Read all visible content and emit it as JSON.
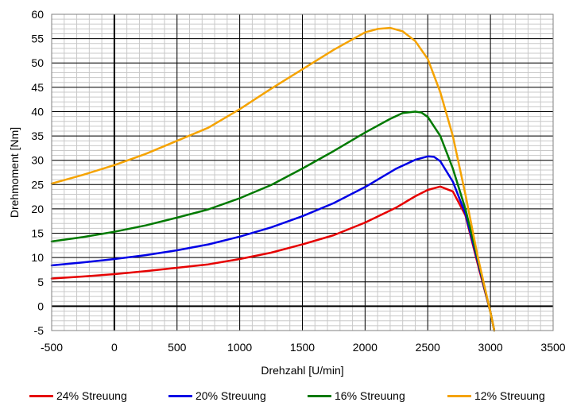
{
  "chart_data": {
    "type": "line",
    "title": "",
    "xlabel": "Drehzahl [U/min]",
    "ylabel": "Drehmoment [Nm]",
    "xlim": [
      -500,
      3500
    ],
    "ylim": [
      -5,
      60
    ],
    "x_major_step": 500,
    "y_major_step": 5,
    "x_minor_step": 100,
    "y_minor_step": 1,
    "x_ticks": [
      "-500",
      "0",
      "500",
      "1000",
      "1500",
      "2000",
      "2500",
      "3000",
      "3500"
    ],
    "y_ticks": [
      "-5",
      "0",
      "5",
      "10",
      "15",
      "20",
      "25",
      "30",
      "35",
      "40",
      "45",
      "50",
      "55",
      "60"
    ],
    "grid": true,
    "legend_position": "bottom",
    "series": [
      {
        "name": "24% Streuung",
        "color": "#e60000",
        "x": [
          -500,
          -250,
          0,
          250,
          500,
          750,
          1000,
          1250,
          1500,
          1750,
          2000,
          2250,
          2400,
          2500,
          2600,
          2700,
          2800,
          2900,
          3000,
          3030
        ],
        "y": [
          5.7,
          6.1,
          6.6,
          7.2,
          7.9,
          8.6,
          9.7,
          11.0,
          12.7,
          14.6,
          17.2,
          20.3,
          22.6,
          23.9,
          24.6,
          23.6,
          18.7,
          8.5,
          -1.2,
          -5.0
        ]
      },
      {
        "name": "20% Streuung",
        "color": "#0000e6",
        "x": [
          -500,
          -250,
          0,
          250,
          500,
          750,
          1000,
          1250,
          1500,
          1750,
          2000,
          2250,
          2400,
          2500,
          2550,
          2600,
          2700,
          2800,
          2900,
          3000,
          3030
        ],
        "y": [
          8.4,
          9.0,
          9.7,
          10.5,
          11.5,
          12.7,
          14.3,
          16.2,
          18.5,
          21.2,
          24.5,
          28.3,
          30.1,
          30.8,
          30.7,
          29.8,
          25.6,
          19.0,
          9.0,
          -1.2,
          -5.0
        ]
      },
      {
        "name": "16% Streuung",
        "color": "#007a00",
        "x": [
          -500,
          -250,
          0,
          250,
          500,
          750,
          1000,
          1250,
          1500,
          1750,
          2000,
          2200,
          2300,
          2400,
          2450,
          2500,
          2600,
          2700,
          2800,
          2900,
          3000,
          3030
        ],
        "y": [
          13.3,
          14.2,
          15.3,
          16.6,
          18.2,
          19.9,
          22.2,
          24.9,
          28.3,
          31.9,
          35.7,
          38.5,
          39.7,
          40.0,
          39.8,
          38.9,
          35.0,
          28.3,
          20.0,
          9.5,
          -1.2,
          -5.0
        ]
      },
      {
        "name": "12% Streuung",
        "color": "#f5a300",
        "x": [
          -500,
          -250,
          0,
          250,
          500,
          750,
          1000,
          1250,
          1500,
          1750,
          2000,
          2100,
          2200,
          2300,
          2400,
          2500,
          2600,
          2700,
          2800,
          2900,
          3000,
          3030
        ],
        "y": [
          25.2,
          27.0,
          29.0,
          31.3,
          34.0,
          36.7,
          40.5,
          44.7,
          48.7,
          52.7,
          56.3,
          57.0,
          57.2,
          56.5,
          54.5,
          50.8,
          44.0,
          35.0,
          23.0,
          10.0,
          -1.2,
          -5.0
        ]
      }
    ]
  }
}
